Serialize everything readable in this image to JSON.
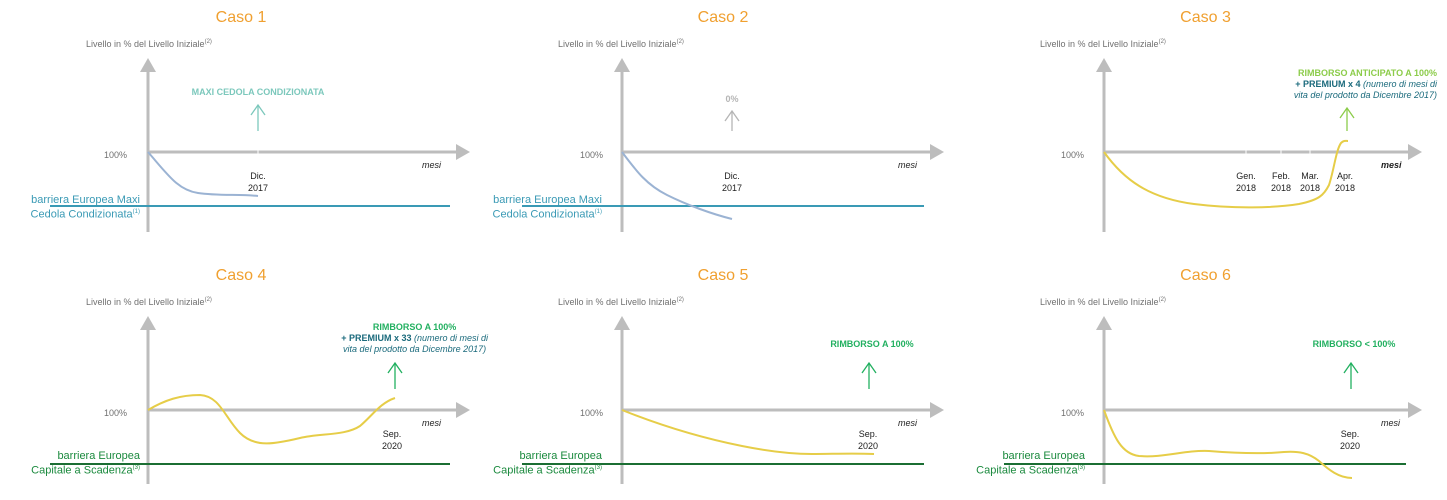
{
  "colors": {
    "title": "#f0a030",
    "axis": "#bdbdbd",
    "barrier_teal": "#3a9ab5",
    "barrier_green": "#1b6e33",
    "curve_blue": "#9bb3d3",
    "curve_yellow": "#e6cd48",
    "ann_teal": "#7cc8bc",
    "ann_grey": "#b5b5b5",
    "ann_lightgreen": "#8ccc4a",
    "ann_green": "#22b060"
  },
  "common": {
    "ylabel": "Livello in % del Livello Iniziale",
    "ylabel_note": "(2)",
    "pct": "100%",
    "mesi": "mesi"
  },
  "cases": [
    {
      "title": "Caso 1",
      "ticks": [
        {
          "line1": "Dic.",
          "line2": "2017"
        }
      ],
      "barrier": {
        "line1": "barriera Europea Maxi",
        "line2": "Cedola Condizionata",
        "note": "(1)"
      },
      "annotation": {
        "line1": "MAXI CEDOLA CONDIZIONATA",
        "premium": "",
        "line2": "",
        "line3": ""
      },
      "curve_color": "blue"
    },
    {
      "title": "Caso 2",
      "ticks": [
        {
          "line1": "Dic.",
          "line2": "2017"
        }
      ],
      "barrier": {
        "line1": "barriera Europea Maxi",
        "line2": "Cedola Condizionata",
        "note": "(1)"
      },
      "annotation": {
        "line1": "0%",
        "premium": "",
        "line2": "",
        "line3": ""
      },
      "curve_color": "blue"
    },
    {
      "title": "Caso 3",
      "ticks": [
        {
          "line1": "Gen.",
          "line2": "2018"
        },
        {
          "line1": "Feb.",
          "line2": "2018"
        },
        {
          "line1": "Mar.",
          "line2": "2018"
        },
        {
          "line1": "Apr.",
          "line2": "2018"
        }
      ],
      "barrier": {
        "line1": "",
        "line2": "",
        "note": ""
      },
      "annotation": {
        "line1": "RIMBORSO ANTICIPATO A 100%",
        "premium": "+ PREMIUM x 4",
        "line2": " (numero di mesi di",
        "line3": "vita del prodotto da Dicembre 2017)"
      },
      "curve_color": "yellow"
    },
    {
      "title": "Caso 4",
      "ticks": [
        {
          "line1": "Sep.",
          "line2": "2020"
        }
      ],
      "barrier": {
        "line1": "barriera Europea",
        "line2": "Capitale a Scadenza",
        "note": "(3)"
      },
      "annotation": {
        "line1": "RIMBORSO A 100%",
        "premium": "+ PREMIUM x 33",
        "line2": " (numero di mesi di",
        "line3": "vita del prodotto da Dicembre 2017)"
      },
      "curve_color": "yellow"
    },
    {
      "title": "Caso 5",
      "ticks": [
        {
          "line1": "Sep.",
          "line2": "2020"
        }
      ],
      "barrier": {
        "line1": "barriera Europea",
        "line2": "Capitale a Scadenza",
        "note": "(3)"
      },
      "annotation": {
        "line1": "RIMBORSO A 100%",
        "premium": "",
        "line2": "",
        "line3": ""
      },
      "curve_color": "yellow"
    },
    {
      "title": "Caso 6",
      "ticks": [
        {
          "line1": "Sep.",
          "line2": "2020"
        }
      ],
      "barrier": {
        "line1": "barriera Europea",
        "line2": "Capitale a Scadenza",
        "note": "(3)"
      },
      "annotation": {
        "line1": "RIMBORSO < 100%",
        "premium": "",
        "line2": "",
        "line3": ""
      },
      "curve_color": "yellow"
    }
  ]
}
